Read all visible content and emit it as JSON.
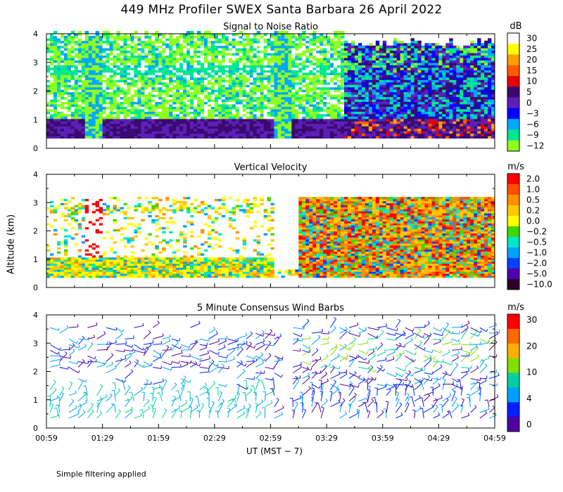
{
  "title": "449 MHz Profiler SWEX Santa Barbara 26 April 2022",
  "footnote": "Simple filtering applied",
  "x_axis": {
    "label": "UT  (MST − 7)",
    "ticks": [
      "00:59",
      "01:29",
      "01:59",
      "02:29",
      "02:59",
      "03:29",
      "03:59",
      "04:29",
      "04:59"
    ],
    "range_minutes": [
      59,
      299
    ]
  },
  "y_axis": {
    "label": "Altitude (km)",
    "ticks": [
      "0",
      "1",
      "2",
      "3",
      "4"
    ],
    "range": [
      0,
      4
    ]
  },
  "chart_data": [
    {
      "type": "heatmap",
      "title": "Signal to Noise Ratio",
      "units": "dB",
      "colorbar": {
        "labels": [
          "30",
          "25",
          "20",
          "15",
          "10",
          "5",
          "0",
          "−3",
          "−6",
          "−9",
          "−12"
        ],
        "colors": [
          "#ffffff",
          "#ffff00",
          "#ffa000",
          "#ff5a00",
          "#e60000",
          "#3a0a6e",
          "#5c20b8",
          "#0000ff",
          "#00a8ff",
          "#00e890",
          "#90ff20"
        ]
      },
      "altitude_range_km": [
        0.35,
        4.1
      ]
    },
    {
      "type": "heatmap",
      "title": "Vertical Velocity",
      "units": "m/s",
      "colorbar": {
        "labels": [
          "2.0",
          "1.0",
          "0.5",
          "0.2",
          "0.0",
          "−0.2",
          "−0.5",
          "−1.0",
          "−2.0",
          "−5.0",
          "−10.0"
        ],
        "colors": [
          "#ff0000",
          "#ff5000",
          "#ff9000",
          "#ffc800",
          "#ffff00",
          "#40d800",
          "#00e8c8",
          "#00a0ff",
          "#0040ff",
          "#5000b0",
          "#2a002a"
        ]
      },
      "altitude_range_km": [
        0.35,
        4.1
      ]
    },
    {
      "type": "scatter",
      "title": "5 Minute Consensus Wind Barbs",
      "units": "m/s",
      "colorbar": {
        "labels": [
          "30",
          "20",
          "10",
          "4",
          "0"
        ],
        "colors": [
          "#ff0000",
          "#ff6a00",
          "#ffb000",
          "#80e000",
          "#00d0a0",
          "#00a0ff",
          "#0020ff",
          "#5000a0"
        ]
      },
      "time_step_minutes": 5
    }
  ]
}
